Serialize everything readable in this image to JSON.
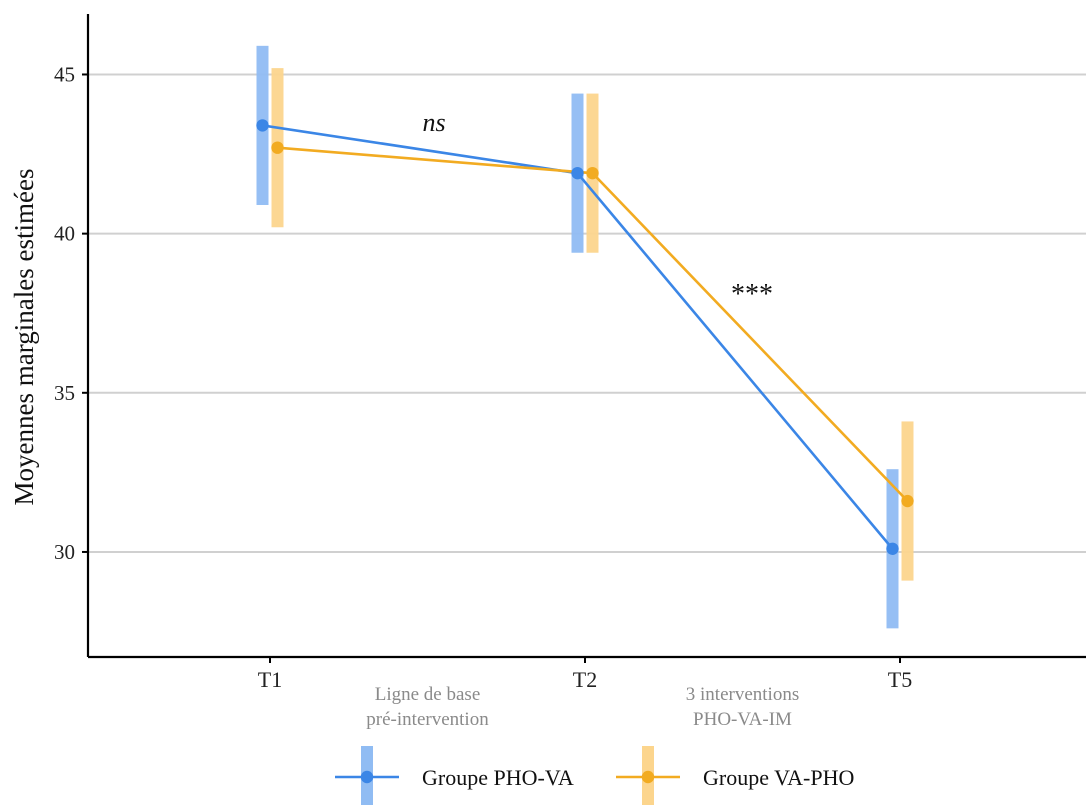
{
  "chart_data": {
    "type": "line",
    "title": "",
    "xlabel": "",
    "ylabel": "Moyennes marginales estimées",
    "categories": [
      "T1",
      "T2",
      "T5"
    ],
    "ylim": [
      26.7,
      46.9
    ],
    "yticks": [
      30,
      35,
      40,
      45
    ],
    "grid": "horizontal",
    "legend_position": "bottom",
    "series": [
      {
        "name": "Groupe PHO-VA",
        "color": "#3b86e6",
        "band_color": "#90bcf3",
        "values": [
          43.4,
          41.9,
          30.1
        ],
        "ci_low": [
          40.9,
          39.4,
          27.6
        ],
        "ci_high": [
          45.9,
          44.4,
          32.6
        ]
      },
      {
        "name": "Groupe VA-PHO",
        "color": "#f2ab21",
        "band_color": "#fcd58d",
        "values": [
          42.7,
          41.9,
          31.6
        ],
        "ci_low": [
          40.2,
          39.4,
          29.1
        ],
        "ci_high": [
          45.2,
          44.4,
          34.1
        ]
      }
    ],
    "phase_labels": [
      {
        "line1": "Ligne de base",
        "line2": "pré-intervention",
        "between": [
          0,
          1
        ]
      },
      {
        "line1": "3 interventions",
        "line2": "PHO-VA-IM",
        "between": [
          1,
          2
        ]
      }
    ],
    "annotations": [
      {
        "text": "ns",
        "italic": true,
        "between": [
          0,
          1
        ]
      },
      {
        "text": "***",
        "italic": false,
        "between": [
          1,
          2
        ]
      }
    ]
  }
}
